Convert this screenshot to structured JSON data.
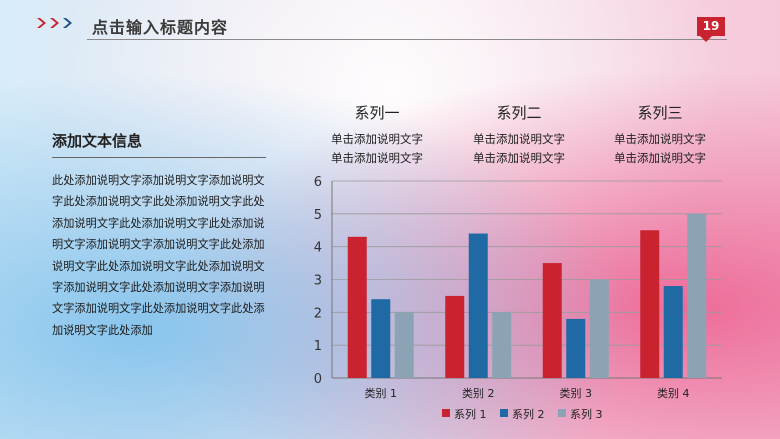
{
  "header": {
    "title": "点击输入标题内容",
    "page_number": "19",
    "accent": "#c9232f",
    "icon": "chevron-right-icon"
  },
  "left": {
    "title": "添加文本信息",
    "body": "此处添加说明文字添加说明文字添加说明文字此处添加说明文字此处添加说明文字此处添加说明文字此处添加说明文字此处添加说明文字添加说明文字添加说明文字此处添加说明文字此处添加说明文字此处添加说明文字添加说明文字此处添加说明文字添加说明文字添加说明文字此处添加说明文字此处添加说明文字此处添加"
  },
  "series_headers": [
    {
      "name": "系列一",
      "desc1": "单击添加说明文字",
      "desc2": "单击添加说明文字"
    },
    {
      "name": "系列二",
      "desc1": "单击添加说明文字",
      "desc2": "单击添加说明文字"
    },
    {
      "name": "系列三",
      "desc1": "单击添加说明文字",
      "desc2": "单击添加说明文字"
    }
  ],
  "chart_data": {
    "type": "bar",
    "categories": [
      "类别 1",
      "类别 2",
      "类别 3",
      "类别 4"
    ],
    "series": [
      {
        "name": "系列 1",
        "color": "#c9232f",
        "values": [
          4.3,
          2.5,
          3.5,
          4.5
        ]
      },
      {
        "name": "系列 2",
        "color": "#1f6aa5",
        "values": [
          2.4,
          4.4,
          1.8,
          2.8
        ]
      },
      {
        "name": "系列 3",
        "color": "#8ca3b6",
        "values": [
          2.0,
          2.0,
          3.0,
          5.0
        ]
      }
    ],
    "ylim": [
      0,
      6
    ],
    "yticks": [
      "0",
      "1",
      "2",
      "3",
      "4",
      "5",
      "6"
    ],
    "grid": true,
    "legend_position": "bottom"
  }
}
